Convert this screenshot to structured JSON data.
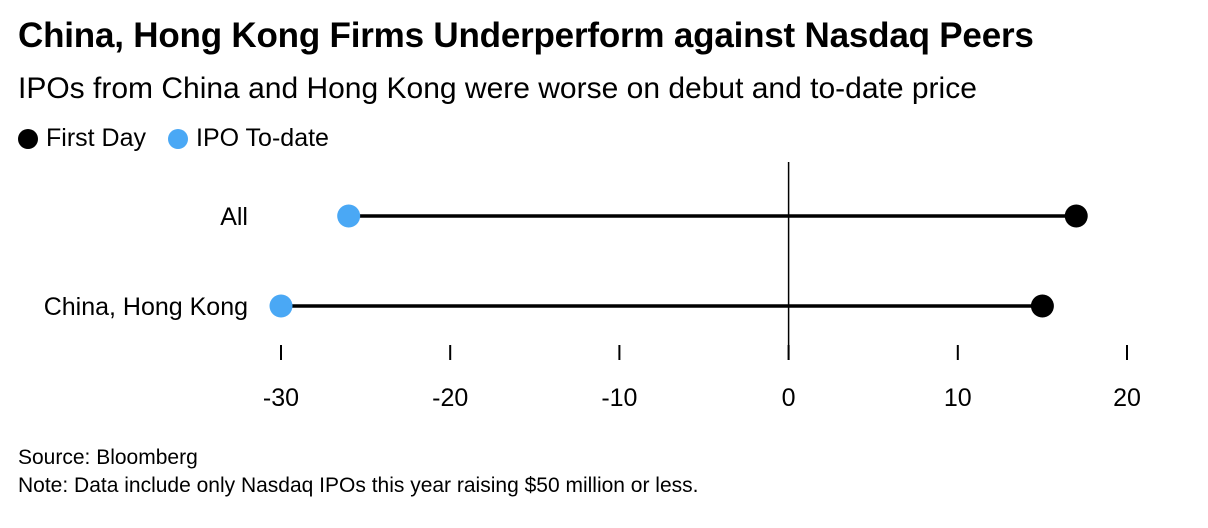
{
  "chart_data": {
    "type": "dumbbell",
    "title": "China, Hong Kong Firms Underperform against Nasdaq Peers",
    "subtitle": "IPOs from China and Hong Kong were worse on debut and to-date price",
    "categories": [
      "All",
      "China, Hong Kong"
    ],
    "series": [
      {
        "name": "First Day",
        "color": "#000000",
        "values": [
          17,
          15
        ]
      },
      {
        "name": "IPO To-date",
        "color": "#4aa8f5",
        "values": [
          -26,
          -30
        ]
      }
    ],
    "x_ticks": [
      -30,
      -20,
      -10,
      0,
      10,
      20
    ],
    "x_tick_labels": [
      "-30",
      "-20",
      "-10",
      "0",
      "10",
      "20"
    ],
    "xlim": [
      -30,
      20
    ],
    "zero_line": true,
    "legend_position": "top-left",
    "source": "Source: Bloomberg",
    "note": "Note: Data include only Nasdaq IPOs this year raising $50 million or less."
  }
}
